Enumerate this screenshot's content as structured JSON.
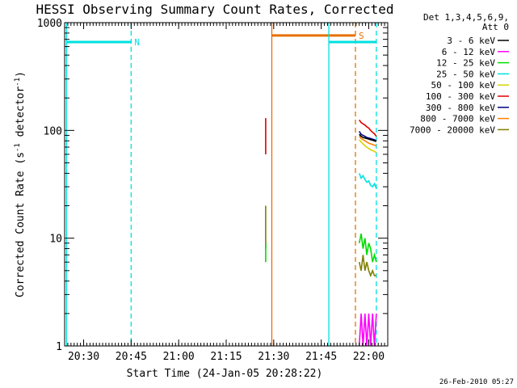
{
  "chart_data": {
    "type": "line",
    "title": "HESSI Observing Summary Count Rates, Corrected",
    "xlabel": "Start Time (24-Jan-05 20:28:22)",
    "ylabel": "Corrected Count Rate (s",
    "ylabel_sup1": "-1",
    "ylabel_mid": " detector",
    "ylabel_sup2": "-1",
    "ylabel_end": ")",
    "x_range_minutes": [
      20.4,
      22.1
    ],
    "x_ticks": [
      {
        "label": "20:30",
        "t": 20.5
      },
      {
        "label": "20:45",
        "t": 20.75
      },
      {
        "label": "21:00",
        "t": 21.0
      },
      {
        "label": "21:15",
        "t": 21.25
      },
      {
        "label": "21:30",
        "t": 21.5
      },
      {
        "label": "21:45",
        "t": 21.75
      },
      {
        "label": "22:00",
        "t": 22.0
      }
    ],
    "y_scale": "log",
    "y_range": [
      1,
      1000
    ],
    "y_ticks": [
      {
        "label": "1000",
        "v": 1000
      },
      {
        "label": "100",
        "v": 100
      },
      {
        "label": "10",
        "v": 10
      },
      {
        "label": "1",
        "v": 1
      }
    ],
    "legend_header": [
      "Det 1,3,4,5,6,9,",
      "Att 0"
    ],
    "legend_placement": "right",
    "series": [
      {
        "name": "3 - 6 keV",
        "color": "#000000"
      },
      {
        "name": "6 - 12 keV",
        "color": "#ff00ff"
      },
      {
        "name": "12 - 25 keV",
        "color": "#00dd00"
      },
      {
        "name": "25 - 50 keV",
        "color": "#00e0e0"
      },
      {
        "name": "50 - 100 keV",
        "color": "#d4d400"
      },
      {
        "name": "100 - 300 keV",
        "color": "#dd0000"
      },
      {
        "name": "300 - 800 keV",
        "color": "#000080"
      },
      {
        "name": "800 - 7000 keV",
        "color": "#ff8000"
      },
      {
        "name": "7000 - 20000 keV",
        "color": "#808000"
      }
    ],
    "region_markers": [
      {
        "label": "N",
        "color": "#00e0e0",
        "start": 20.41,
        "end": 20.75,
        "level": 660,
        "dashed_end": true
      },
      {
        "label": "S",
        "color": "#e87000",
        "start": 21.49,
        "end": 21.93,
        "level": 760,
        "dashed_end": true
      },
      {
        "label": "",
        "color": "#00e0e0",
        "start": 21.79,
        "end": 22.04,
        "level": 660,
        "dashed_end": true
      }
    ],
    "data_segments": [
      {
        "color": "#dd0000",
        "x": [
          21.458,
          21.458
        ],
        "y": [
          130,
          60
        ]
      },
      {
        "color": "#808000",
        "x": [
          21.458,
          21.458
        ],
        "y": [
          20,
          8
        ]
      },
      {
        "color": "#00dd00",
        "x": [
          21.458,
          21.458
        ],
        "y": [
          9,
          6
        ]
      },
      {
        "color": "#dd0000",
        "x": [
          21.95,
          21.96,
          21.97,
          21.98,
          21.99,
          22.0,
          22.01,
          22.02,
          22.03,
          22.04
        ],
        "y": [
          125,
          118,
          115,
          112,
          108,
          105,
          100,
          96,
          93,
          88
        ]
      },
      {
        "color": "#000080",
        "x": [
          21.95,
          21.96,
          21.97,
          21.98,
          21.99,
          22.0,
          22.01,
          22.02,
          22.03,
          22.04
        ],
        "y": [
          98,
          92,
          90,
          88,
          86,
          85,
          84,
          83,
          82,
          80
        ]
      },
      {
        "color": "#000000",
        "x": [
          21.95,
          21.96,
          21.97,
          21.98,
          21.99,
          22.0,
          22.01,
          22.02,
          22.03,
          22.04
        ],
        "y": [
          92,
          88,
          86,
          85,
          84,
          83,
          82,
          81,
          80,
          79
        ]
      },
      {
        "color": "#ff8000",
        "x": [
          21.95,
          21.96,
          21.97,
          21.98,
          21.99,
          22.0,
          22.01,
          22.02,
          22.03,
          22.04
        ],
        "y": [
          88,
          84,
          82,
          80,
          78,
          76,
          75,
          74,
          73,
          72
        ]
      },
      {
        "color": "#d4d400",
        "x": [
          21.95,
          21.96,
          21.97,
          21.98,
          21.99,
          22.0,
          22.01,
          22.02,
          22.03,
          22.04
        ],
        "y": [
          82,
          78,
          75,
          72,
          70,
          68,
          66,
          65,
          64,
          62
        ]
      },
      {
        "color": "#00e0e0",
        "x": [
          21.95,
          21.96,
          21.97,
          21.98,
          21.99,
          22.0,
          22.01,
          22.02,
          22.03,
          22.04
        ],
        "y": [
          40,
          36,
          38,
          35,
          33,
          34,
          31,
          30,
          32,
          29
        ]
      },
      {
        "color": "#00dd00",
        "x": [
          21.95,
          21.96,
          21.97,
          21.98,
          21.99,
          22.0,
          22.01,
          22.02,
          22.03,
          22.04
        ],
        "y": [
          9,
          11,
          8,
          10,
          7,
          9,
          8,
          6,
          7,
          6
        ]
      },
      {
        "color": "#808000",
        "x": [
          21.95,
          21.96,
          21.97,
          21.98,
          21.99,
          22.0,
          22.01,
          22.02,
          22.03,
          22.04
        ],
        "y": [
          6,
          5,
          7,
          5,
          6,
          5,
          4.5,
          5,
          4.5,
          4.5
        ]
      },
      {
        "color": "#ff00ff",
        "x": [
          21.95,
          21.96,
          21.97,
          21.98,
          21.99,
          22.0,
          22.01,
          22.02,
          22.03,
          22.04
        ],
        "y": [
          1,
          2,
          1,
          2,
          1,
          2,
          1,
          2,
          1,
          2
        ]
      }
    ],
    "timestamp": "26-Feb-2010 05:27"
  }
}
